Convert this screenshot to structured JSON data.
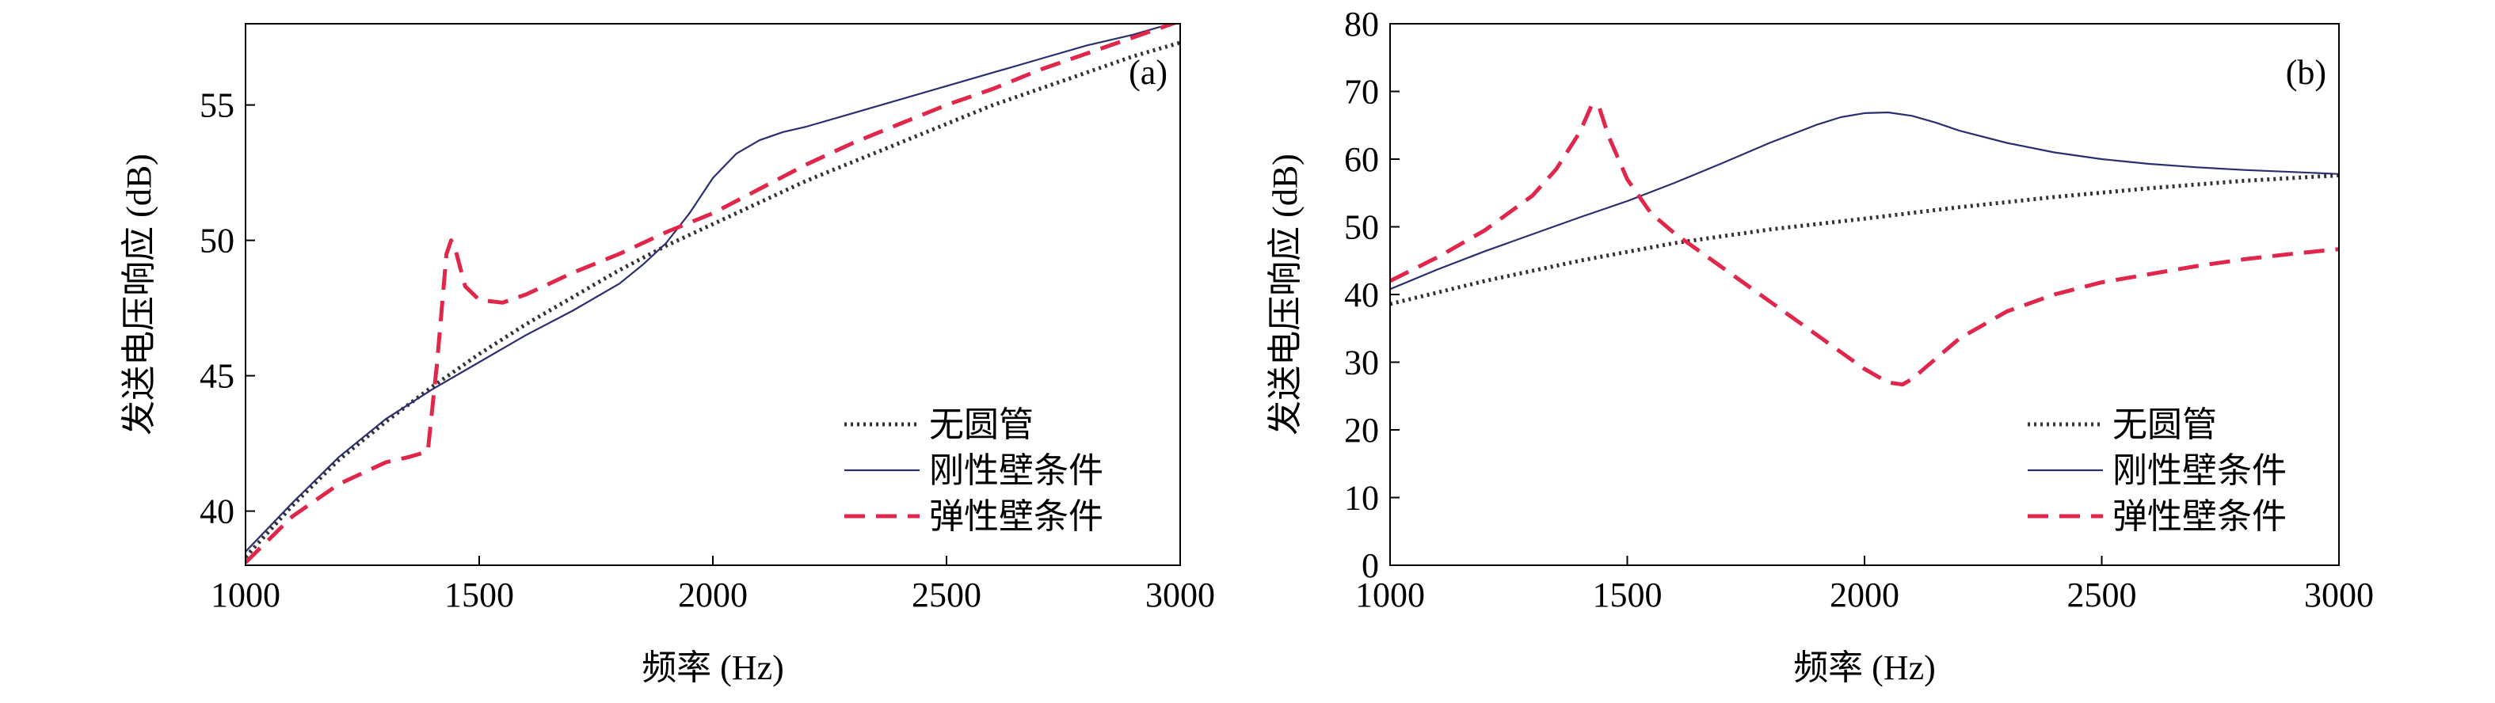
{
  "chart_data": [
    {
      "type": "line",
      "panel_label": "(a)",
      "xlabel": "频率 (Hz)",
      "ylabel": "发送电压响应 (dB)",
      "xlim": [
        1000,
        3000
      ],
      "ylim": [
        38,
        58
      ],
      "xticks": [
        "1000",
        "1500",
        "2000",
        "2500",
        "3000"
      ],
      "yticks": [
        "40",
        "45",
        "50",
        "55"
      ],
      "legend_position": "bottom-right",
      "series": [
        {
          "name": "无圆管",
          "style": "dotted",
          "color": "#333333",
          "x": [
            1000,
            1100,
            1200,
            1300,
            1400,
            1500,
            1600,
            1700,
            1800,
            1900,
            2000,
            2100,
            2200,
            2300,
            2400,
            2500,
            2600,
            2700,
            2800,
            2900,
            3000
          ],
          "y": [
            38.3,
            40.2,
            41.9,
            43.3,
            44.6,
            45.8,
            46.9,
            47.9,
            48.9,
            49.8,
            50.6,
            51.4,
            52.2,
            52.9,
            53.6,
            54.3,
            55.0,
            55.6,
            56.2,
            56.8,
            57.3
          ]
        },
        {
          "name": "刚性壁条件",
          "style": "solid",
          "color": "#2a2f6e",
          "x": [
            1000,
            1100,
            1200,
            1300,
            1400,
            1500,
            1600,
            1700,
            1800,
            1850,
            1900,
            1950,
            2000,
            2050,
            2100,
            2150,
            2200,
            2300,
            2400,
            2500,
            2600,
            2700,
            2800,
            2900,
            3000
          ],
          "y": [
            38.5,
            40.3,
            42.0,
            43.4,
            44.5,
            45.5,
            46.5,
            47.4,
            48.4,
            49.1,
            49.9,
            51.0,
            52.3,
            53.2,
            53.7,
            54.0,
            54.2,
            54.7,
            55.2,
            55.7,
            56.2,
            56.7,
            57.2,
            57.6,
            58.1
          ]
        },
        {
          "name": "弹性壁条件",
          "style": "dashed",
          "color": "#e0264a",
          "x": [
            1000,
            1100,
            1200,
            1300,
            1350,
            1390,
            1410,
            1430,
            1440,
            1450,
            1470,
            1500,
            1550,
            1600,
            1700,
            1800,
            1900,
            2000,
            2100,
            2200,
            2300,
            2400,
            2500,
            2600,
            2700,
            2800,
            2900,
            3000
          ],
          "y": [
            38.1,
            39.8,
            41.0,
            41.8,
            42.0,
            42.2,
            45.5,
            49.5,
            50.0,
            49.6,
            48.3,
            47.8,
            47.7,
            48.0,
            48.8,
            49.5,
            50.3,
            51.0,
            51.9,
            52.8,
            53.6,
            54.3,
            55.0,
            55.6,
            56.3,
            56.9,
            57.5,
            58.1
          ]
        }
      ]
    },
    {
      "type": "line",
      "panel_label": "(b)",
      "xlabel": "频率 (Hz)",
      "ylabel": "发送电压响应 (dB)",
      "xlim": [
        1000,
        3000
      ],
      "ylim": [
        0,
        80
      ],
      "xticks": [
        "1000",
        "1500",
        "2000",
        "2500",
        "3000"
      ],
      "yticks": [
        "0",
        "10",
        "20",
        "30",
        "40",
        "50",
        "60",
        "70",
        "80"
      ],
      "legend_position": "bottom-right",
      "series": [
        {
          "name": "无圆管",
          "style": "dotted",
          "color": "#333333",
          "x": [
            1000,
            1200,
            1400,
            1600,
            1800,
            2000,
            2200,
            2400,
            2600,
            2800,
            3000
          ],
          "y": [
            38.6,
            42.0,
            45.0,
            47.6,
            49.6,
            51.2,
            52.9,
            54.4,
            55.7,
            56.8,
            57.6
          ]
        },
        {
          "name": "刚性壁条件",
          "style": "solid",
          "color": "#2a2f6e",
          "x": [
            1000,
            1100,
            1200,
            1300,
            1400,
            1500,
            1600,
            1700,
            1800,
            1900,
            1950,
            2000,
            2050,
            2100,
            2150,
            2200,
            2300,
            2400,
            2500,
            2600,
            2700,
            2800,
            2900,
            3000
          ],
          "y": [
            40.8,
            43.7,
            46.4,
            48.9,
            51.4,
            53.8,
            56.5,
            59.4,
            62.4,
            65.1,
            66.2,
            66.8,
            66.9,
            66.4,
            65.4,
            64.2,
            62.4,
            61.0,
            60.0,
            59.3,
            58.8,
            58.4,
            58.1,
            57.8
          ]
        },
        {
          "name": "弹性壁条件",
          "style": "dashed",
          "color": "#e0264a",
          "x": [
            1000,
            1100,
            1200,
            1300,
            1350,
            1400,
            1425,
            1440,
            1460,
            1500,
            1550,
            1600,
            1700,
            1800,
            1900,
            2000,
            2050,
            2080,
            2100,
            2150,
            2200,
            2300,
            2400,
            2500,
            2600,
            2700,
            2800,
            2900,
            3000
          ],
          "y": [
            42.0,
            45.5,
            49.5,
            54.6,
            58.5,
            64.0,
            68.0,
            67.8,
            63.5,
            57.0,
            52.0,
            49.0,
            44.0,
            39.0,
            34.0,
            29.0,
            27.0,
            26.7,
            27.5,
            30.5,
            33.5,
            37.5,
            40.0,
            41.8,
            43.0,
            44.2,
            45.2,
            46.0,
            46.7
          ]
        }
      ]
    }
  ]
}
